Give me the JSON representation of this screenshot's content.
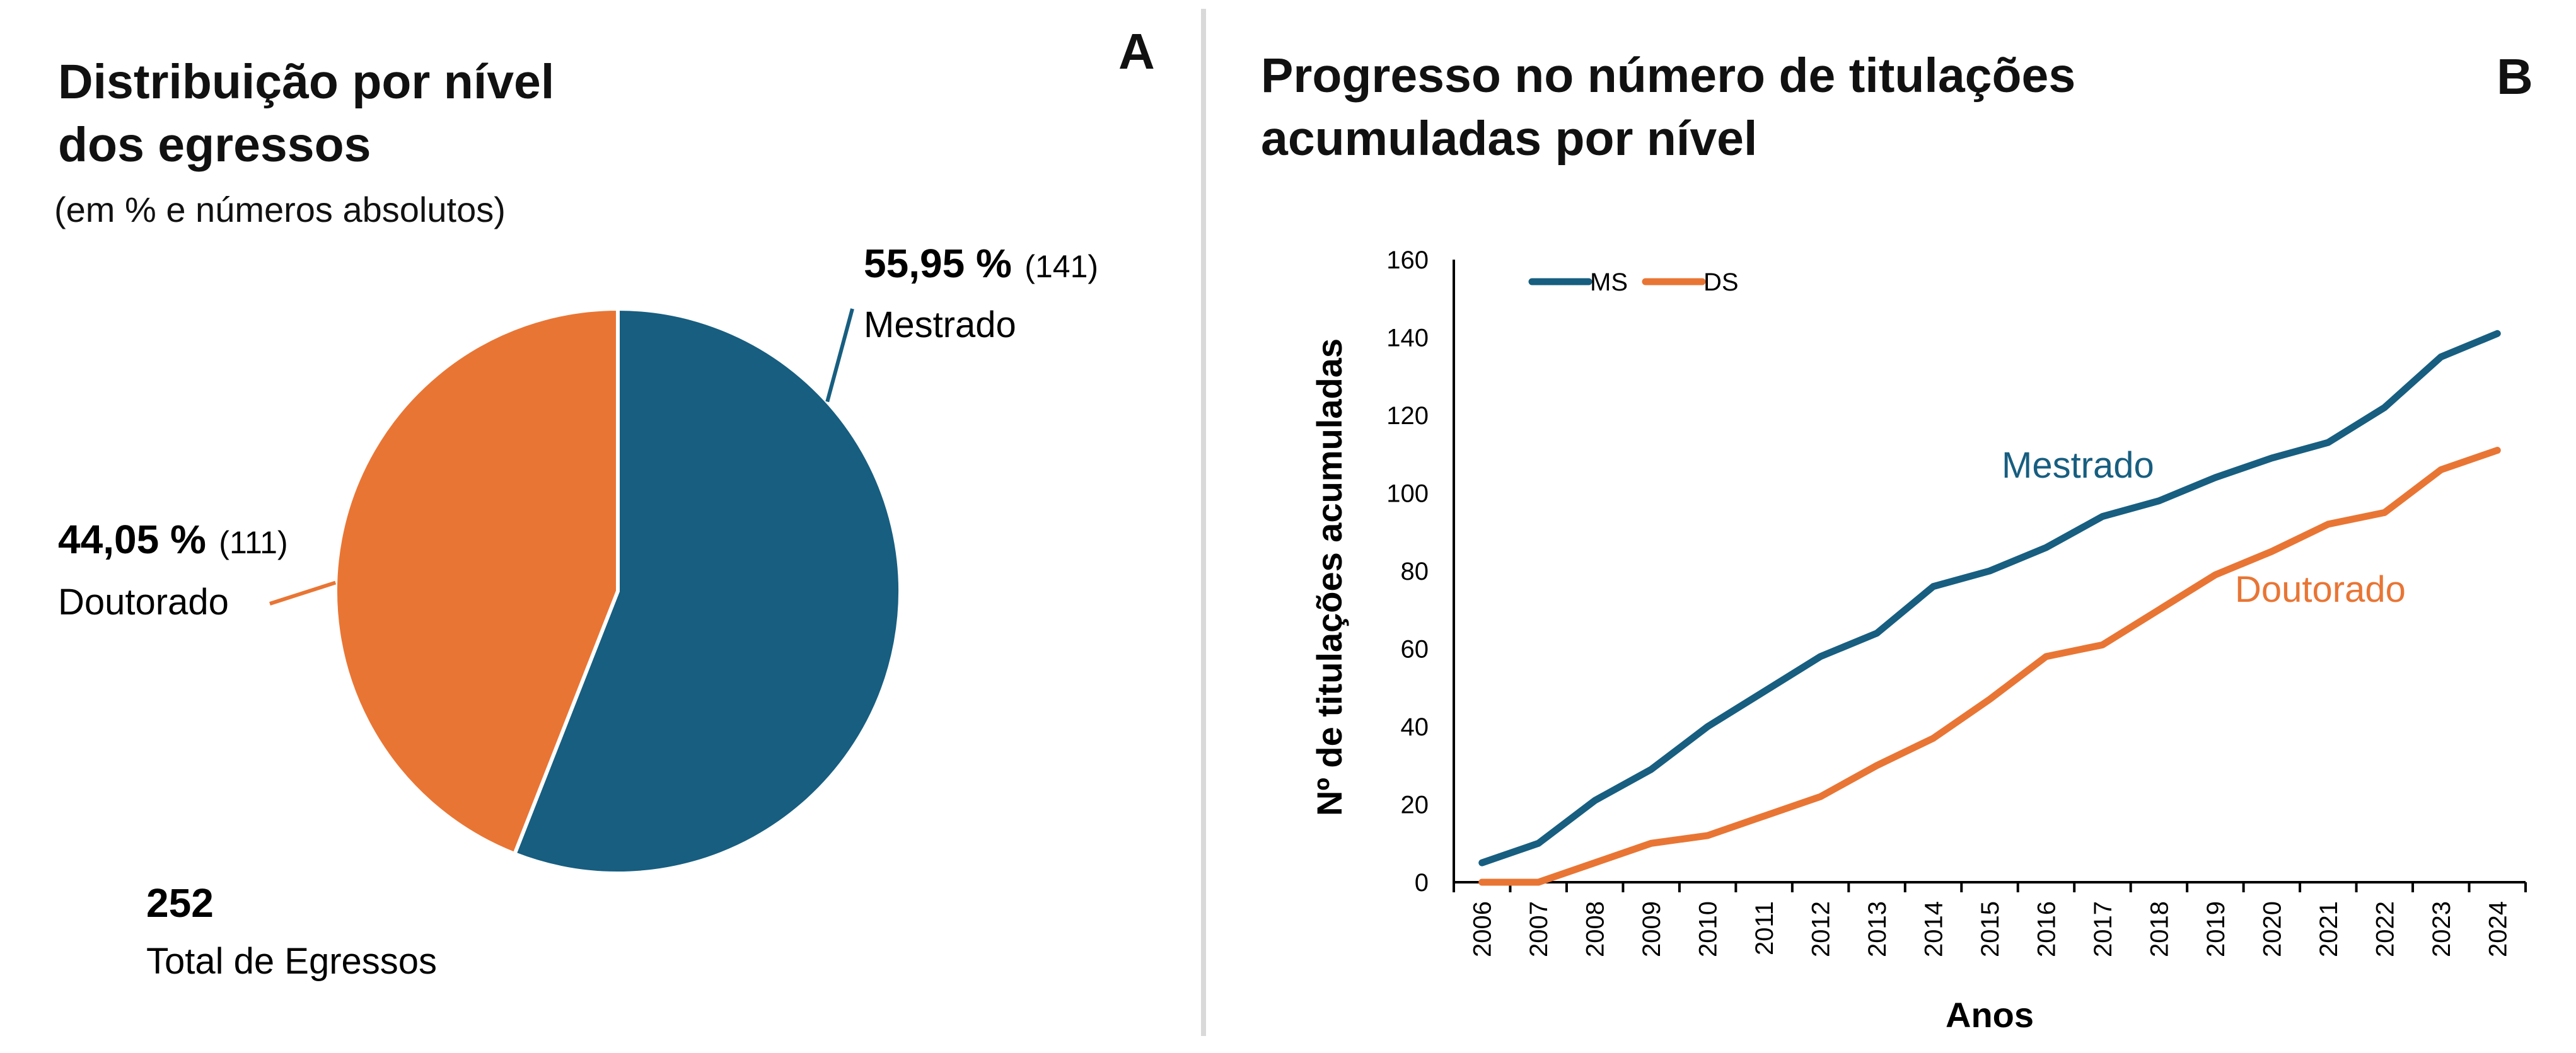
{
  "colors": {
    "ms": "#175e80",
    "ds": "#e97534"
  },
  "chart_data": [
    {
      "type": "pie",
      "panel_label": "A",
      "title": "Distribuição por nível dos egressos",
      "title_lines": [
        "Distribuição por nível",
        "dos egressos"
      ],
      "subtitle": "(em % e números absolutos)",
      "slices": [
        {
          "name": "Mestrado",
          "percent_label": "55,95 %",
          "count_label": "(141)",
          "value": 141
        },
        {
          "name": "Doutorado",
          "percent_label": "44,05 %",
          "count_label": "(111)",
          "value": 111
        }
      ],
      "total": {
        "value": "252",
        "label": "Total de Egressos"
      }
    },
    {
      "type": "line",
      "panel_label": "B",
      "title": "Progresso no número de titulações acumuladas por nível",
      "title_lines": [
        "Progresso no número de titulações",
        "acumuladas por nível"
      ],
      "xlabel": "Anos",
      "ylabel": "Nº de titulações acumuladas",
      "ylim": [
        0,
        160
      ],
      "yticks": [
        "0",
        "20",
        "40",
        "60",
        "80",
        "100",
        "120",
        "140",
        "160"
      ],
      "x": [
        "2006",
        "2007",
        "2008",
        "2009",
        "2010",
        "2011",
        "2012",
        "2013",
        "2014",
        "2015",
        "2016",
        "2017",
        "2018",
        "2019",
        "2020",
        "2021",
        "2022",
        "2023",
        "2024"
      ],
      "legend": {
        "position": "top-left",
        "entries": [
          "MS",
          "DS"
        ]
      },
      "series": [
        {
          "name": "MS",
          "label": "Mestrado",
          "values": [
            5,
            10,
            21,
            29,
            40,
            49,
            58,
            64,
            76,
            80,
            86,
            94,
            98,
            104,
            109,
            113,
            122,
            135,
            141
          ]
        },
        {
          "name": "DS",
          "label": "Doutorado",
          "values": [
            0,
            0,
            5,
            10,
            12,
            17,
            22,
            30,
            37,
            47,
            58,
            61,
            70,
            79,
            85,
            92,
            95,
            106,
            111
          ]
        }
      ]
    }
  ]
}
